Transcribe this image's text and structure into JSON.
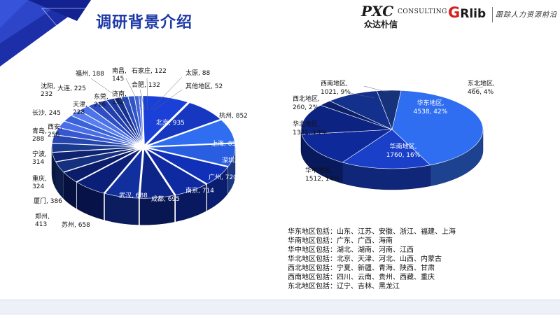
{
  "title": "调研背景介绍",
  "logos": {
    "pxc": "PXC",
    "consulting": "CONSULTING",
    "pxc_cn": "众达朴信",
    "grlib": "GRlib",
    "slogan": "跟踪人力资源前沿"
  },
  "colors": {
    "dark": "#0b1f6b",
    "mid": "#1733a6",
    "bright": "#2f6ef0",
    "accent": "#2a50d8"
  },
  "chart_data": [
    {
      "type": "pie",
      "style": "3d-exploded",
      "slices": [
        {
          "label": "北京",
          "value": 935
        },
        {
          "label": "杭州",
          "value": 852
        },
        {
          "label": "上海",
          "value": 850
        },
        {
          "label": "深圳",
          "value": 820
        },
        {
          "label": "广州",
          "value": 720
        },
        {
          "label": "南京",
          "value": 714
        },
        {
          "label": "成都",
          "value": 695
        },
        {
          "label": "武汉",
          "value": 688
        },
        {
          "label": "苏州",
          "value": 658
        },
        {
          "label": "郑州",
          "value": 413
        },
        {
          "label": "厦门",
          "value": 386
        },
        {
          "label": "重庆",
          "value": 324
        },
        {
          "label": "宁波",
          "value": 314
        },
        {
          "label": "青岛",
          "value": 288
        },
        {
          "label": "西安",
          "value": 256
        },
        {
          "label": "长沙",
          "value": 245
        },
        {
          "label": "沈阳",
          "value": 232
        },
        {
          "label": "天津",
          "value": 228
        },
        {
          "label": "大连",
          "value": 225
        },
        {
          "label": "东莞",
          "value": 216
        },
        {
          "label": "福州",
          "value": 188
        },
        {
          "label": "济南",
          "value": 152
        },
        {
          "label": "南昌",
          "value": 145
        },
        {
          "label": "合肥",
          "value": 132
        },
        {
          "label": "石家庄",
          "value": 122
        },
        {
          "label": "太原",
          "value": 88
        },
        {
          "label": "其他地区",
          "value": 52
        }
      ]
    },
    {
      "type": "pie",
      "style": "3d",
      "slices": [
        {
          "label": "华东地区",
          "value": 4538,
          "percent": "42%"
        },
        {
          "label": "华南地区",
          "value": 1760,
          "percent": "16%"
        },
        {
          "label": "华中地区",
          "value": 1512,
          "percent": "14%"
        },
        {
          "label": "华北地区",
          "value": 1381,
          "percent": "13%"
        },
        {
          "label": "西北地区",
          "value": 260,
          "percent": "2%"
        },
        {
          "label": "西南地区",
          "value": 1021,
          "percent": "9%"
        },
        {
          "label": "东北地区",
          "value": 466,
          "percent": "4%"
        }
      ]
    }
  ],
  "region_legend": [
    "华东地区包括：山东、江苏、安徽、浙江、福建、上海",
    "华南地区包括：广东、广西、海南",
    "华中地区包括：湖北、湖南、河南、江西",
    "华北地区包括：北京、天津、河北、山西、内蒙古",
    "西北地区包括：宁夏、新疆、青海、陕西、甘肃",
    "西南地区包括：四川、云南、贵州、西藏、重庆",
    "东北地区包括：辽宁、吉林、黑龙江"
  ]
}
